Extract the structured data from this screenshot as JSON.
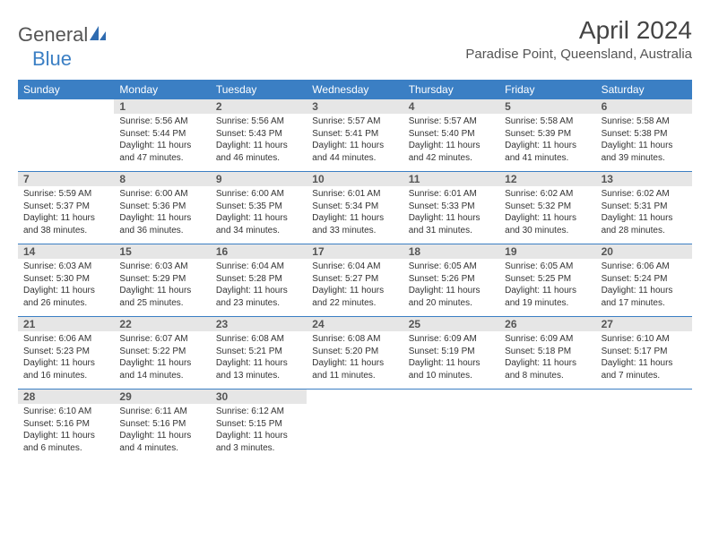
{
  "logo": {
    "part1": "General",
    "part2": "Blue"
  },
  "title": "April 2024",
  "location": "Paradise Point, Queensland, Australia",
  "colors": {
    "accent": "#3b7fc4",
    "daybar_bg": "#e6e6e6",
    "text": "#333333",
    "logo_gray": "#555555"
  },
  "day_headers": [
    "Sunday",
    "Monday",
    "Tuesday",
    "Wednesday",
    "Thursday",
    "Friday",
    "Saturday"
  ],
  "layout": {
    "columns": 7,
    "rows": 5,
    "first_day_column_index": 1
  },
  "weeks": [
    [
      {
        "empty": true
      },
      {
        "day": "1",
        "sunrise": "Sunrise: 5:56 AM",
        "sunset": "Sunset: 5:44 PM",
        "daylight1": "Daylight: 11 hours",
        "daylight2": "and 47 minutes."
      },
      {
        "day": "2",
        "sunrise": "Sunrise: 5:56 AM",
        "sunset": "Sunset: 5:43 PM",
        "daylight1": "Daylight: 11 hours",
        "daylight2": "and 46 minutes."
      },
      {
        "day": "3",
        "sunrise": "Sunrise: 5:57 AM",
        "sunset": "Sunset: 5:41 PM",
        "daylight1": "Daylight: 11 hours",
        "daylight2": "and 44 minutes."
      },
      {
        "day": "4",
        "sunrise": "Sunrise: 5:57 AM",
        "sunset": "Sunset: 5:40 PM",
        "daylight1": "Daylight: 11 hours",
        "daylight2": "and 42 minutes."
      },
      {
        "day": "5",
        "sunrise": "Sunrise: 5:58 AM",
        "sunset": "Sunset: 5:39 PM",
        "daylight1": "Daylight: 11 hours",
        "daylight2": "and 41 minutes."
      },
      {
        "day": "6",
        "sunrise": "Sunrise: 5:58 AM",
        "sunset": "Sunset: 5:38 PM",
        "daylight1": "Daylight: 11 hours",
        "daylight2": "and 39 minutes."
      }
    ],
    [
      {
        "day": "7",
        "sunrise": "Sunrise: 5:59 AM",
        "sunset": "Sunset: 5:37 PM",
        "daylight1": "Daylight: 11 hours",
        "daylight2": "and 38 minutes."
      },
      {
        "day": "8",
        "sunrise": "Sunrise: 6:00 AM",
        "sunset": "Sunset: 5:36 PM",
        "daylight1": "Daylight: 11 hours",
        "daylight2": "and 36 minutes."
      },
      {
        "day": "9",
        "sunrise": "Sunrise: 6:00 AM",
        "sunset": "Sunset: 5:35 PM",
        "daylight1": "Daylight: 11 hours",
        "daylight2": "and 34 minutes."
      },
      {
        "day": "10",
        "sunrise": "Sunrise: 6:01 AM",
        "sunset": "Sunset: 5:34 PM",
        "daylight1": "Daylight: 11 hours",
        "daylight2": "and 33 minutes."
      },
      {
        "day": "11",
        "sunrise": "Sunrise: 6:01 AM",
        "sunset": "Sunset: 5:33 PM",
        "daylight1": "Daylight: 11 hours",
        "daylight2": "and 31 minutes."
      },
      {
        "day": "12",
        "sunrise": "Sunrise: 6:02 AM",
        "sunset": "Sunset: 5:32 PM",
        "daylight1": "Daylight: 11 hours",
        "daylight2": "and 30 minutes."
      },
      {
        "day": "13",
        "sunrise": "Sunrise: 6:02 AM",
        "sunset": "Sunset: 5:31 PM",
        "daylight1": "Daylight: 11 hours",
        "daylight2": "and 28 minutes."
      }
    ],
    [
      {
        "day": "14",
        "sunrise": "Sunrise: 6:03 AM",
        "sunset": "Sunset: 5:30 PM",
        "daylight1": "Daylight: 11 hours",
        "daylight2": "and 26 minutes."
      },
      {
        "day": "15",
        "sunrise": "Sunrise: 6:03 AM",
        "sunset": "Sunset: 5:29 PM",
        "daylight1": "Daylight: 11 hours",
        "daylight2": "and 25 minutes."
      },
      {
        "day": "16",
        "sunrise": "Sunrise: 6:04 AM",
        "sunset": "Sunset: 5:28 PM",
        "daylight1": "Daylight: 11 hours",
        "daylight2": "and 23 minutes."
      },
      {
        "day": "17",
        "sunrise": "Sunrise: 6:04 AM",
        "sunset": "Sunset: 5:27 PM",
        "daylight1": "Daylight: 11 hours",
        "daylight2": "and 22 minutes."
      },
      {
        "day": "18",
        "sunrise": "Sunrise: 6:05 AM",
        "sunset": "Sunset: 5:26 PM",
        "daylight1": "Daylight: 11 hours",
        "daylight2": "and 20 minutes."
      },
      {
        "day": "19",
        "sunrise": "Sunrise: 6:05 AM",
        "sunset": "Sunset: 5:25 PM",
        "daylight1": "Daylight: 11 hours",
        "daylight2": "and 19 minutes."
      },
      {
        "day": "20",
        "sunrise": "Sunrise: 6:06 AM",
        "sunset": "Sunset: 5:24 PM",
        "daylight1": "Daylight: 11 hours",
        "daylight2": "and 17 minutes."
      }
    ],
    [
      {
        "day": "21",
        "sunrise": "Sunrise: 6:06 AM",
        "sunset": "Sunset: 5:23 PM",
        "daylight1": "Daylight: 11 hours",
        "daylight2": "and 16 minutes."
      },
      {
        "day": "22",
        "sunrise": "Sunrise: 6:07 AM",
        "sunset": "Sunset: 5:22 PM",
        "daylight1": "Daylight: 11 hours",
        "daylight2": "and 14 minutes."
      },
      {
        "day": "23",
        "sunrise": "Sunrise: 6:08 AM",
        "sunset": "Sunset: 5:21 PM",
        "daylight1": "Daylight: 11 hours",
        "daylight2": "and 13 minutes."
      },
      {
        "day": "24",
        "sunrise": "Sunrise: 6:08 AM",
        "sunset": "Sunset: 5:20 PM",
        "daylight1": "Daylight: 11 hours",
        "daylight2": "and 11 minutes."
      },
      {
        "day": "25",
        "sunrise": "Sunrise: 6:09 AM",
        "sunset": "Sunset: 5:19 PM",
        "daylight1": "Daylight: 11 hours",
        "daylight2": "and 10 minutes."
      },
      {
        "day": "26",
        "sunrise": "Sunrise: 6:09 AM",
        "sunset": "Sunset: 5:18 PM",
        "daylight1": "Daylight: 11 hours",
        "daylight2": "and 8 minutes."
      },
      {
        "day": "27",
        "sunrise": "Sunrise: 6:10 AM",
        "sunset": "Sunset: 5:17 PM",
        "daylight1": "Daylight: 11 hours",
        "daylight2": "and 7 minutes."
      }
    ],
    [
      {
        "day": "28",
        "sunrise": "Sunrise: 6:10 AM",
        "sunset": "Sunset: 5:16 PM",
        "daylight1": "Daylight: 11 hours",
        "daylight2": "and 6 minutes."
      },
      {
        "day": "29",
        "sunrise": "Sunrise: 6:11 AM",
        "sunset": "Sunset: 5:16 PM",
        "daylight1": "Daylight: 11 hours",
        "daylight2": "and 4 minutes."
      },
      {
        "day": "30",
        "sunrise": "Sunrise: 6:12 AM",
        "sunset": "Sunset: 5:15 PM",
        "daylight1": "Daylight: 11 hours",
        "daylight2": "and 3 minutes."
      },
      {
        "empty": true
      },
      {
        "empty": true
      },
      {
        "empty": true
      },
      {
        "empty": true
      }
    ]
  ]
}
